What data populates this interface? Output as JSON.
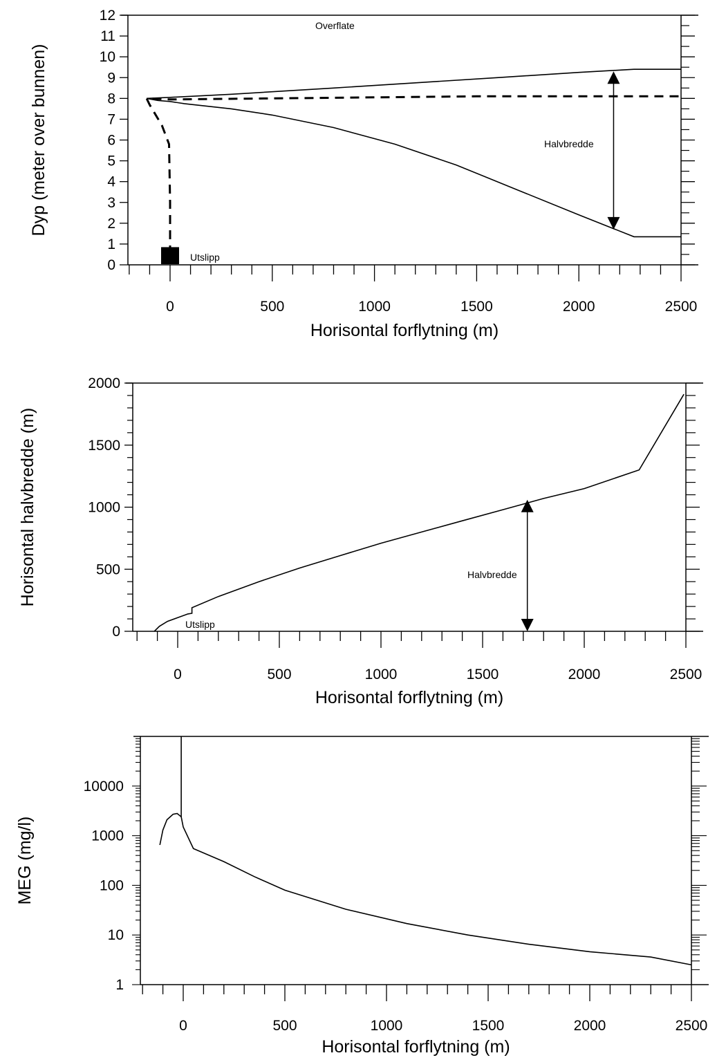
{
  "chart_data": [
    {
      "type": "line",
      "xlabel": "Horisontal forflytning (m)",
      "ylabel": "Dyp (meter over bunnen)",
      "xlim": [
        -200,
        2500
      ],
      "ylim": [
        0,
        12
      ],
      "xticks": [
        0,
        500,
        1000,
        1500,
        2000,
        2500
      ],
      "yticks": [
        0,
        1,
        2,
        3,
        4,
        5,
        6,
        7,
        8,
        9,
        10,
        11,
        12
      ],
      "grid": false,
      "annotations": {
        "surface": "Overflate",
        "discharge": "Utslipp",
        "halfwidth": "Halvbredde"
      },
      "series": [
        {
          "style": "solid",
          "x": [
            -115,
            0,
            300,
            800,
            1200,
            1600,
            2000,
            2270,
            2500
          ],
          "y": [
            8.0,
            8.05,
            8.2,
            8.5,
            8.75,
            9.0,
            9.25,
            9.4,
            9.4
          ]
        },
        {
          "style": "solid",
          "x": [
            -115,
            -60,
            0,
            70,
            300,
            500,
            800,
            1100,
            1400,
            1700,
            2000,
            2270,
            2500
          ],
          "y": [
            8.0,
            7.9,
            7.85,
            7.75,
            7.5,
            7.2,
            6.6,
            5.8,
            4.8,
            3.6,
            2.4,
            1.35,
            1.35
          ]
        },
        {
          "style": "dashed",
          "x": [
            0,
            0,
            -5,
            -40,
            -100,
            -115,
            0,
            500,
            1000,
            1500,
            2000,
            2500
          ],
          "y": [
            0.5,
            3,
            5.8,
            6.7,
            7.7,
            8.0,
            7.95,
            8.0,
            8.05,
            8.1,
            8.1,
            8.1
          ]
        }
      ],
      "halfwidth_arrow": {
        "x": 2170,
        "y_from": 9.3,
        "y_to": 1.7
      },
      "discharge_marker": {
        "x": 0,
        "y": 0.5
      }
    },
    {
      "type": "line",
      "xlabel": "Horisontal forflytning (m)",
      "ylabel": "Horisontal halvbredde (m)",
      "xlim": [
        -300,
        2500
      ],
      "ylim": [
        0,
        2000
      ],
      "xticks": [
        0,
        500,
        1000,
        1500,
        2000,
        2500
      ],
      "yticks": [
        0,
        500,
        1000,
        1500,
        2000
      ],
      "grid": false,
      "annotations": {
        "discharge": "Utslipp",
        "halfwidth": "Halvbredde"
      },
      "series": [
        {
          "style": "solid",
          "x": [
            -115,
            -90,
            -50,
            0,
            50,
            70,
            70,
            200,
            400,
            600,
            800,
            1000,
            1200,
            1400,
            1600,
            1800,
            2000,
            2270,
            2490
          ],
          "y": [
            0,
            40,
            80,
            110,
            140,
            145,
            190,
            280,
            400,
            510,
            610,
            710,
            800,
            890,
            980,
            1070,
            1150,
            1300,
            1910
          ]
        }
      ],
      "halfwidth_arrow": {
        "x": 1720,
        "y_from": 1060,
        "y_to": 0
      }
    },
    {
      "type": "line",
      "log_y": true,
      "xlabel": "Horisontal forflytning (m)",
      "ylabel": "MEG (mg/l)",
      "xlim": [
        -200,
        2500
      ],
      "ylim": [
        1,
        100000
      ],
      "xticks": [
        0,
        500,
        1000,
        1500,
        2000,
        2500
      ],
      "yticks": [
        1,
        10,
        100,
        1000,
        10000
      ],
      "grid": false,
      "series": [
        {
          "style": "solid",
          "x": [
            -115,
            -100,
            -80,
            -50,
            -30,
            -10,
            0,
            50,
            200,
            350,
            500,
            800,
            1100,
            1400,
            1700,
            2000,
            2300,
            2500
          ],
          "y": [
            650,
            1300,
            2100,
            2700,
            2800,
            2400,
            1500,
            550,
            300,
            150,
            80,
            33,
            17,
            10,
            6.5,
            4.6,
            3.6,
            2.5
          ]
        },
        {
          "style": "solid",
          "x": [
            -10,
            -10
          ],
          "y": [
            2400,
            100000
          ]
        }
      ]
    }
  ]
}
